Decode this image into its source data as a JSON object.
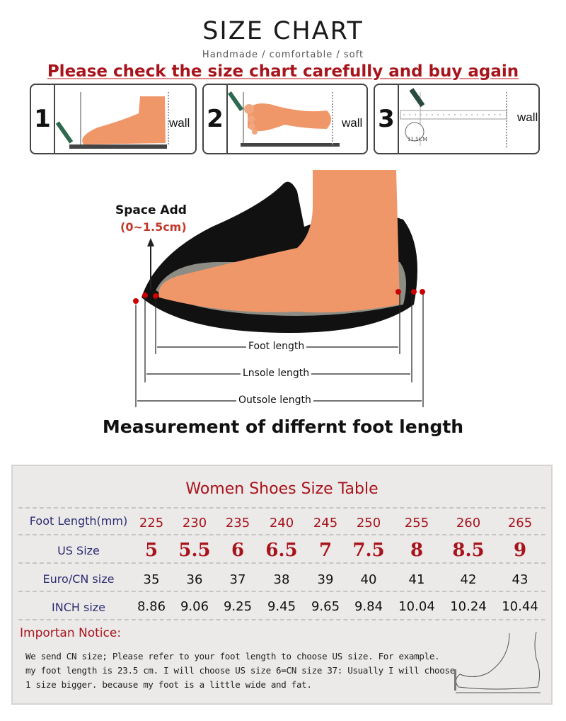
{
  "header": {
    "title": "SIZE CHART",
    "subtitle": "Handmade / comfortable / soft",
    "warning": "Please check the size chart carefully and buy again"
  },
  "steps": [
    {
      "number": "1",
      "wall_label": "wall"
    },
    {
      "number": "2",
      "wall_label": "wall"
    },
    {
      "number": "3",
      "wall_label": "wall",
      "circle_label": "11.5CM"
    }
  ],
  "diagram": {
    "space_add": "Space Add",
    "space_range": "(0~1.5cm)",
    "foot_length": "Foot length",
    "insole_length": "Lnsole length",
    "outsole_length": "Outsole length",
    "caption": "Measurement of differnt foot length"
  },
  "colors": {
    "accent_red": "#a8141c",
    "label_blue": "#2b2e72",
    "skin": "#f0976a",
    "table_bg": "#ece9e9"
  },
  "table": {
    "title": "Women Shoes Size Table",
    "rows": [
      {
        "label": "Foot Length(mm)",
        "values": [
          "225",
          "230",
          "235",
          "240",
          "245",
          "250",
          "255",
          "260",
          "265"
        ]
      },
      {
        "label": "US Size",
        "values": [
          "5",
          "5.5",
          "6",
          "6.5",
          "7",
          "7.5",
          "8",
          "8.5",
          "9"
        ]
      },
      {
        "label": "Euro/CN size",
        "values": [
          "35",
          "36",
          "37",
          "38",
          "39",
          "40",
          "41",
          "42",
          "43"
        ]
      },
      {
        "label": "INCH size",
        "values": [
          "8.86",
          "9.06",
          "9.25",
          "9.45",
          "9.65",
          "9.84",
          "10.04",
          "10.24",
          "10.44"
        ]
      }
    ],
    "notice_title": "Importan Notice:",
    "notice_lines": [
      "We send CN size; Please refer to your foot length to choose US size. For example.",
      "my foot length is 23.5 cm. I will choose US size 6=CN size 37: Usually I will choose",
      "1 size bigger. because my foot is a little wide and fat."
    ]
  }
}
